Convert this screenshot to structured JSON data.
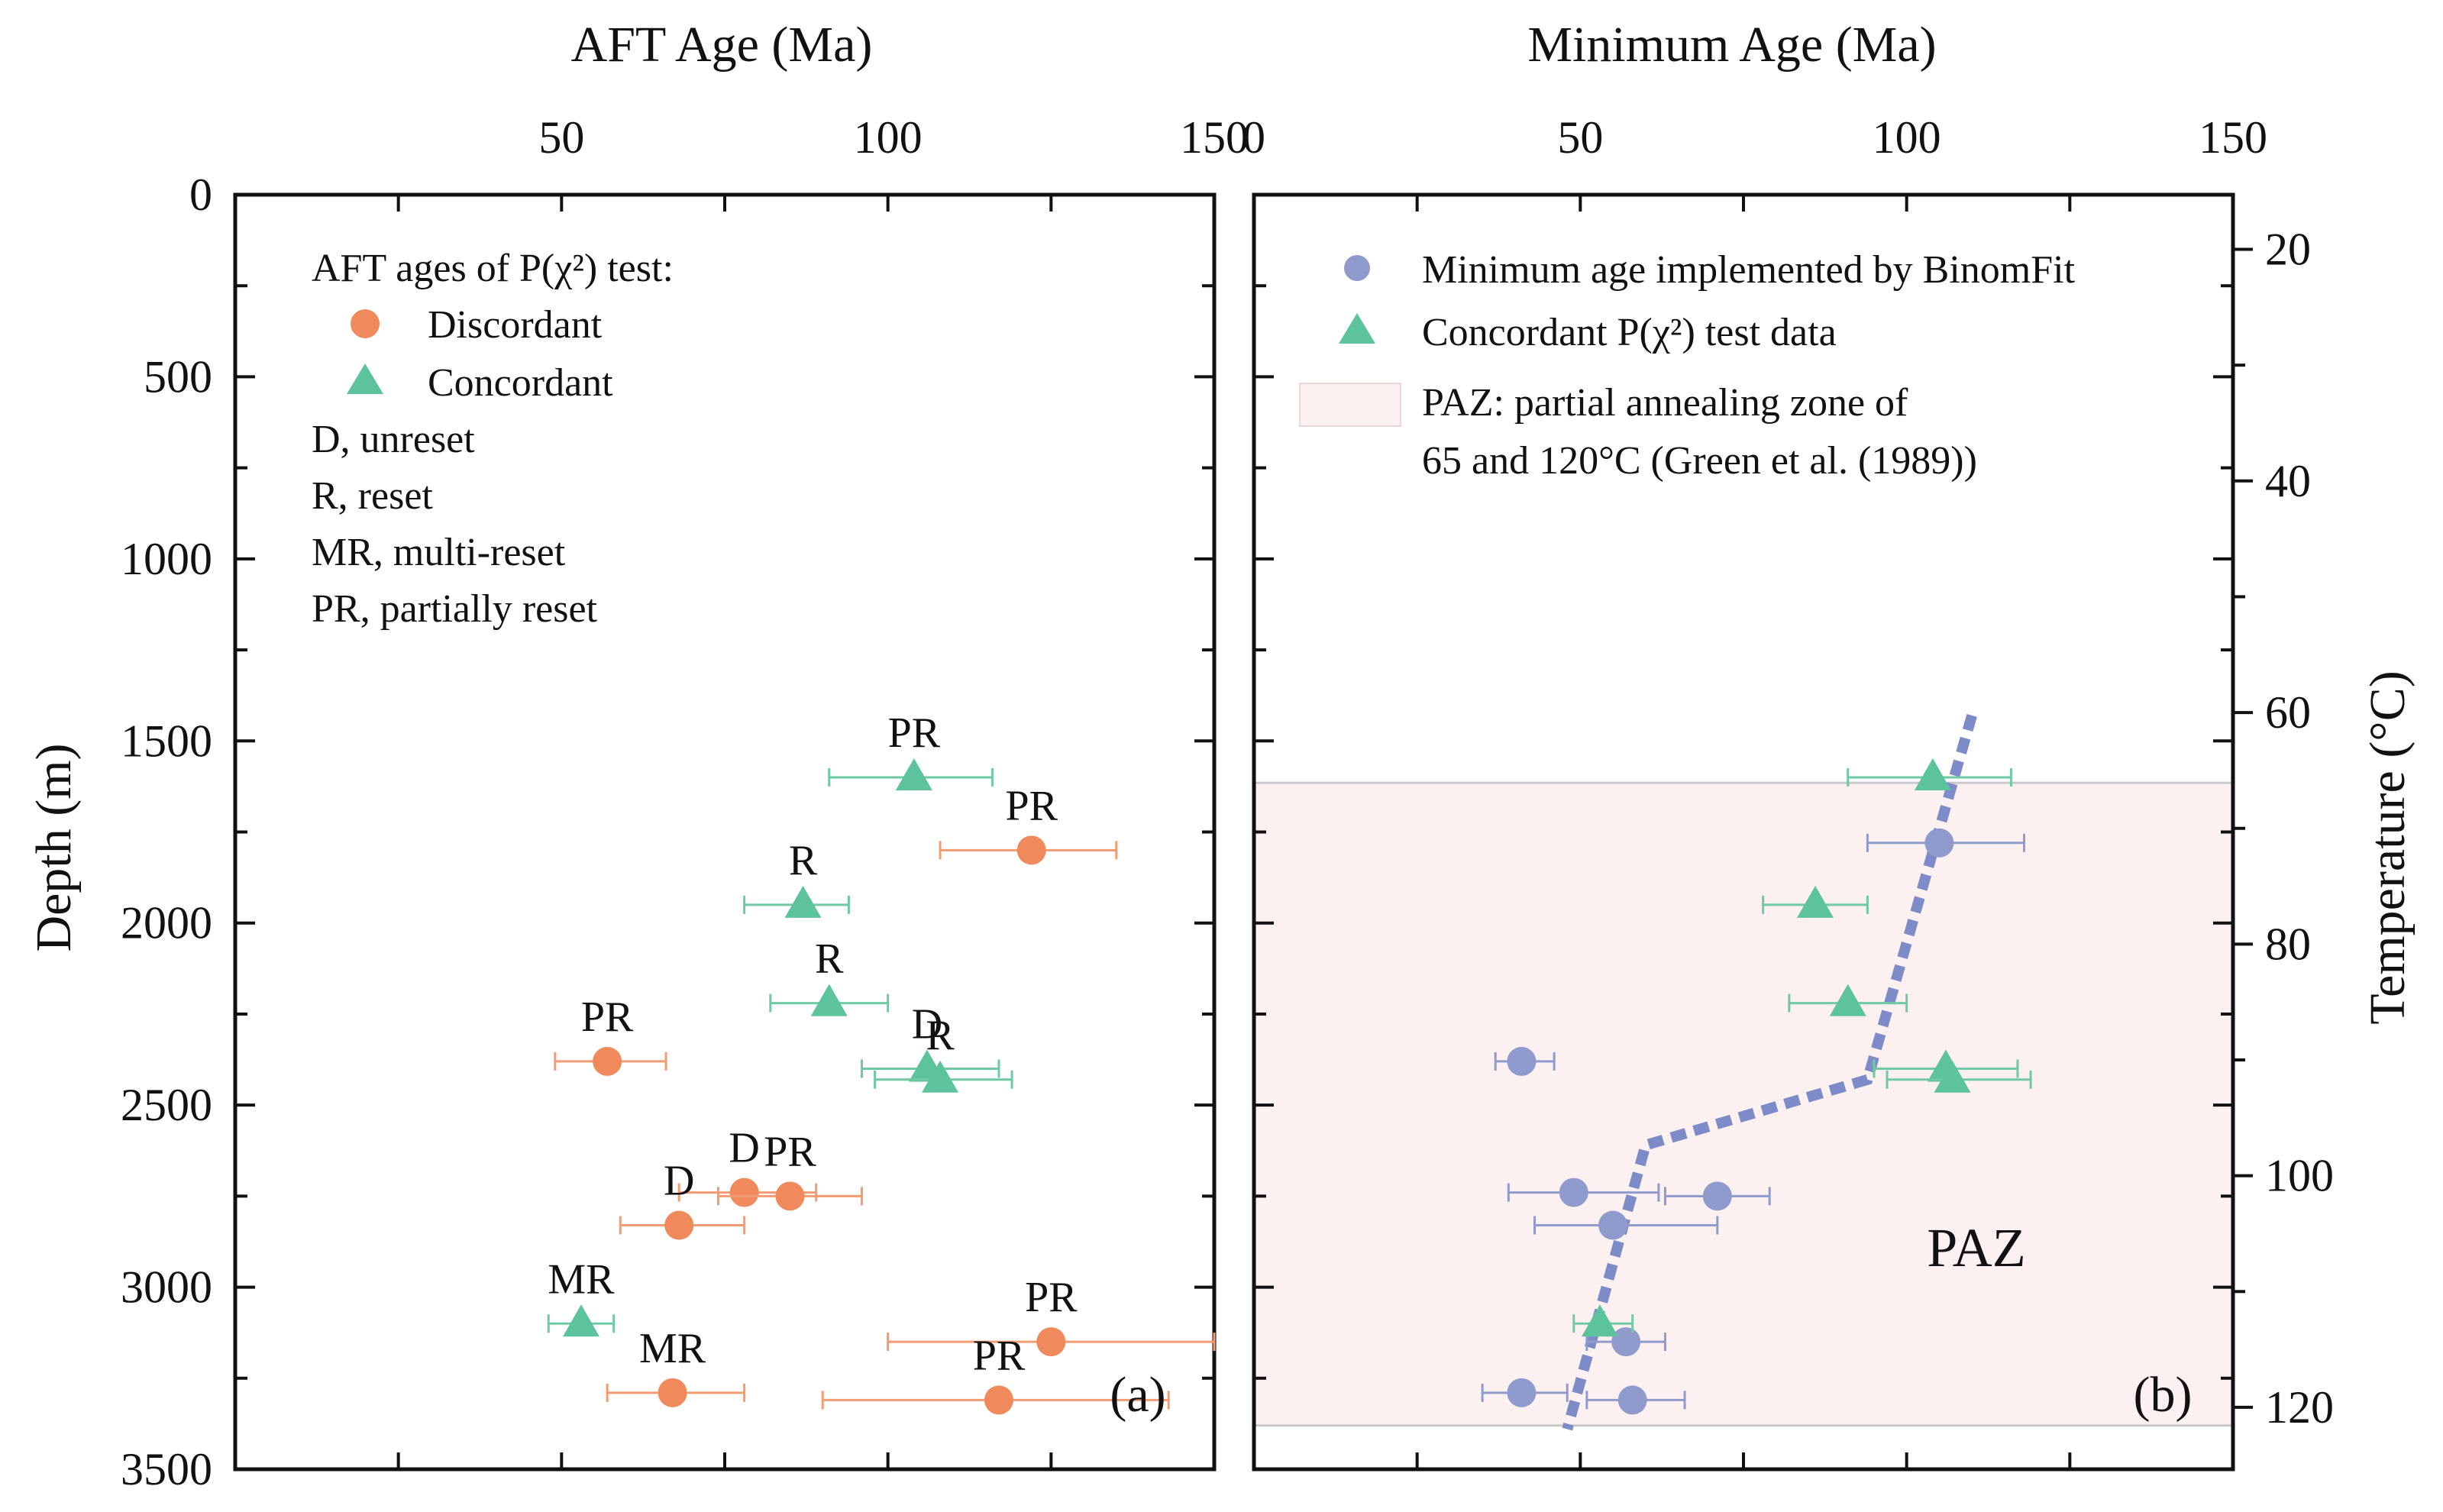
{
  "chart_data": [
    {
      "panel": "a",
      "type": "scatter",
      "panel_label": "(a)",
      "xlabel": "AFT Age (Ma)",
      "ylabel": "Depth (m)",
      "xlim": [
        0,
        150
      ],
      "ylim": [
        0,
        3500
      ],
      "x_ticks": [
        50,
        100,
        150
      ],
      "y_ticks": [
        0,
        500,
        1000,
        1500,
        2000,
        2500,
        3000,
        3500
      ],
      "legend": {
        "title": "AFT ages of P(χ²) test:",
        "entries": [
          {
            "name": "Discordant",
            "marker": "circle",
            "color": "#f08a5d"
          },
          {
            "name": "Concordant",
            "marker": "triangle",
            "color": "#5cc39d"
          }
        ],
        "notes": [
          "D, unreset",
          "R, reset",
          "MR, multi-reset",
          "PR, partially reset"
        ]
      },
      "series": [
        {
          "name": "Discordant",
          "marker": "circle",
          "color": "#f08a5d",
          "points": [
            {
              "x": 122,
              "y": 1800,
              "xerr": [
                108,
                135
              ],
              "label": "PR"
            },
            {
              "x": 57,
              "y": 2380,
              "xerr": [
                49,
                66
              ],
              "label": "PR"
            },
            {
              "x": 78,
              "y": 2740,
              "xerr": [
                68,
                89
              ],
              "label": "D"
            },
            {
              "x": 85,
              "y": 2750,
              "xerr": [
                74,
                96
              ],
              "label": "PR"
            },
            {
              "x": 68,
              "y": 2830,
              "xerr": [
                59,
                78
              ],
              "label": "D"
            },
            {
              "x": 125,
              "y": 3150,
              "xerr": [
                100,
                150
              ],
              "label": "PR"
            },
            {
              "x": 67,
              "y": 3290,
              "xerr": [
                57,
                78
              ],
              "label": "MR"
            },
            {
              "x": 117,
              "y": 3310,
              "xerr": [
                90,
                143
              ],
              "label": "PR"
            }
          ]
        },
        {
          "name": "Concordant",
          "marker": "triangle",
          "color": "#5cc39d",
          "points": [
            {
              "x": 104,
              "y": 1600,
              "xerr": [
                91,
                116
              ],
              "label": "PR"
            },
            {
              "x": 87,
              "y": 1950,
              "xerr": [
                78,
                94
              ],
              "label": "R"
            },
            {
              "x": 91,
              "y": 2220,
              "xerr": [
                82,
                100
              ],
              "label": "R"
            },
            {
              "x": 106,
              "y": 2400,
              "xerr": [
                96,
                117
              ],
              "label": "D"
            },
            {
              "x": 108,
              "y": 2430,
              "xerr": [
                98,
                119
              ],
              "label": "R"
            },
            {
              "x": 53,
              "y": 3100,
              "xerr": [
                48,
                58
              ],
              "label": "MR"
            }
          ]
        }
      ]
    },
    {
      "panel": "b",
      "type": "scatter",
      "panel_label": "(b)",
      "xlabel": "Minimum Age (Ma)",
      "ylabel_right": "Temperature (°C)",
      "xlim": [
        0,
        150
      ],
      "ylim": [
        0,
        3500
      ],
      "x_ticks": [
        0,
        50,
        100,
        150
      ],
      "temp_ticks": [
        20,
        40,
        60,
        80,
        100,
        120
      ],
      "temp_depth_map": {
        "t0": 20,
        "d0": 150,
        "t1": 120,
        "d1": 3330
      },
      "legend": {
        "entries": [
          {
            "name": "Minimum age implemented by BinomFit",
            "marker": "circle",
            "color": "#8e9bcc"
          },
          {
            "name": "Concordant P(χ²) test data",
            "marker": "triangle",
            "color": "#5cc39d"
          },
          {
            "name": "PAZ: partial annealing zone of",
            "name2": "65 and 120°C (Green et al. (1989))",
            "marker": "rect",
            "color": "#fdf0f0"
          }
        ]
      },
      "paz": {
        "label": "PAZ",
        "depth_top": 1615,
        "depth_bottom": 3380,
        "color": "#fdf0f0"
      },
      "trend_line": {
        "color": "#7d8cc8",
        "points": [
          {
            "x": 110,
            "y": 1430
          },
          {
            "x": 94,
            "y": 2430
          },
          {
            "x": 60,
            "y": 2610
          },
          {
            "x": 48,
            "y": 3390
          }
        ]
      },
      "series": [
        {
          "name": "Minimum age implemented by BinomFit",
          "marker": "circle",
          "color": "#8e9bcc",
          "points": [
            {
              "x": 105,
              "y": 1780,
              "xerr": [
                94,
                118
              ]
            },
            {
              "x": 41,
              "y": 2380,
              "xerr": [
                37,
                46
              ]
            },
            {
              "x": 49,
              "y": 2740,
              "xerr": [
                39,
                62
              ]
            },
            {
              "x": 71,
              "y": 2750,
              "xerr": [
                63,
                79
              ]
            },
            {
              "x": 55,
              "y": 2830,
              "xerr": [
                43,
                71
              ]
            },
            {
              "x": 57,
              "y": 3150,
              "xerr": [
                51,
                63
              ]
            },
            {
              "x": 41,
              "y": 3290,
              "xerr": [
                35,
                48
              ]
            },
            {
              "x": 58,
              "y": 3310,
              "xerr": [
                51,
                66
              ]
            }
          ]
        },
        {
          "name": "Concordant P(χ²) test data",
          "marker": "triangle",
          "color": "#5cc39d",
          "points": [
            {
              "x": 104,
              "y": 1600,
              "xerr": [
                91,
                116
              ]
            },
            {
              "x": 86,
              "y": 1950,
              "xerr": [
                78,
                94
              ]
            },
            {
              "x": 91,
              "y": 2220,
              "xerr": [
                82,
                100
              ]
            },
            {
              "x": 106,
              "y": 2400,
              "xerr": [
                95,
                117
              ]
            },
            {
              "x": 107,
              "y": 2430,
              "xerr": [
                97,
                119
              ]
            },
            {
              "x": 53,
              "y": 3100,
              "xerr": [
                49,
                58
              ]
            }
          ]
        }
      ]
    }
  ]
}
